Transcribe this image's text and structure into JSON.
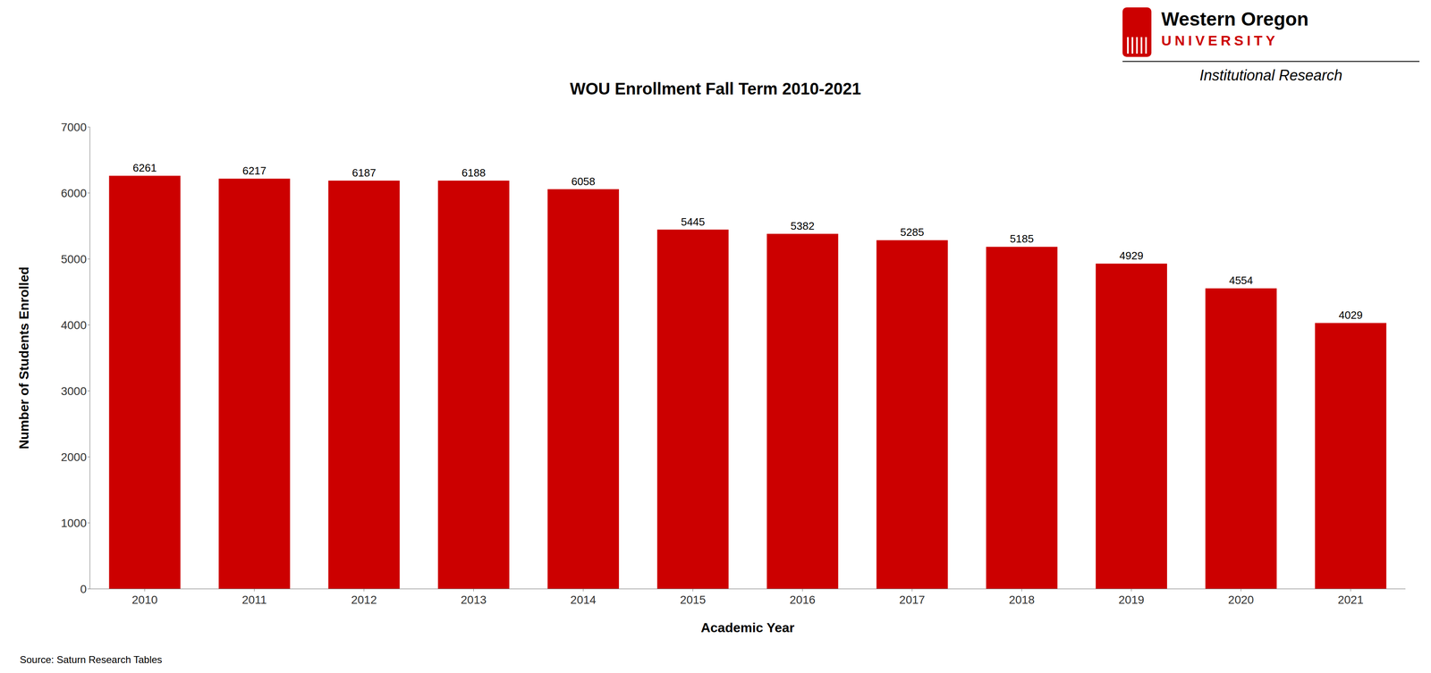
{
  "chart_data": {
    "type": "bar",
    "title": "WOU Enrollment Fall Term 2010-2021",
    "xlabel": "Academic Year",
    "ylabel": "Number of Students Enrolled",
    "categories": [
      "2010",
      "2011",
      "2012",
      "2013",
      "2014",
      "2015",
      "2016",
      "2017",
      "2018",
      "2019",
      "2020",
      "2021"
    ],
    "values": [
      6261,
      6217,
      6187,
      6188,
      6058,
      5445,
      5382,
      5285,
      5185,
      4929,
      4554,
      4029
    ],
    "color": "#CC0000",
    "ylim": [
      0,
      7000
    ],
    "yticks": [
      0,
      1000,
      2000,
      3000,
      4000,
      5000,
      6000,
      7000
    ],
    "grid": false,
    "data_labels": true,
    "annotations": [
      "Source: Saturn Research Tables",
      "Western Oregon",
      "UNIVERSITY",
      "Institutional Research"
    ]
  }
}
